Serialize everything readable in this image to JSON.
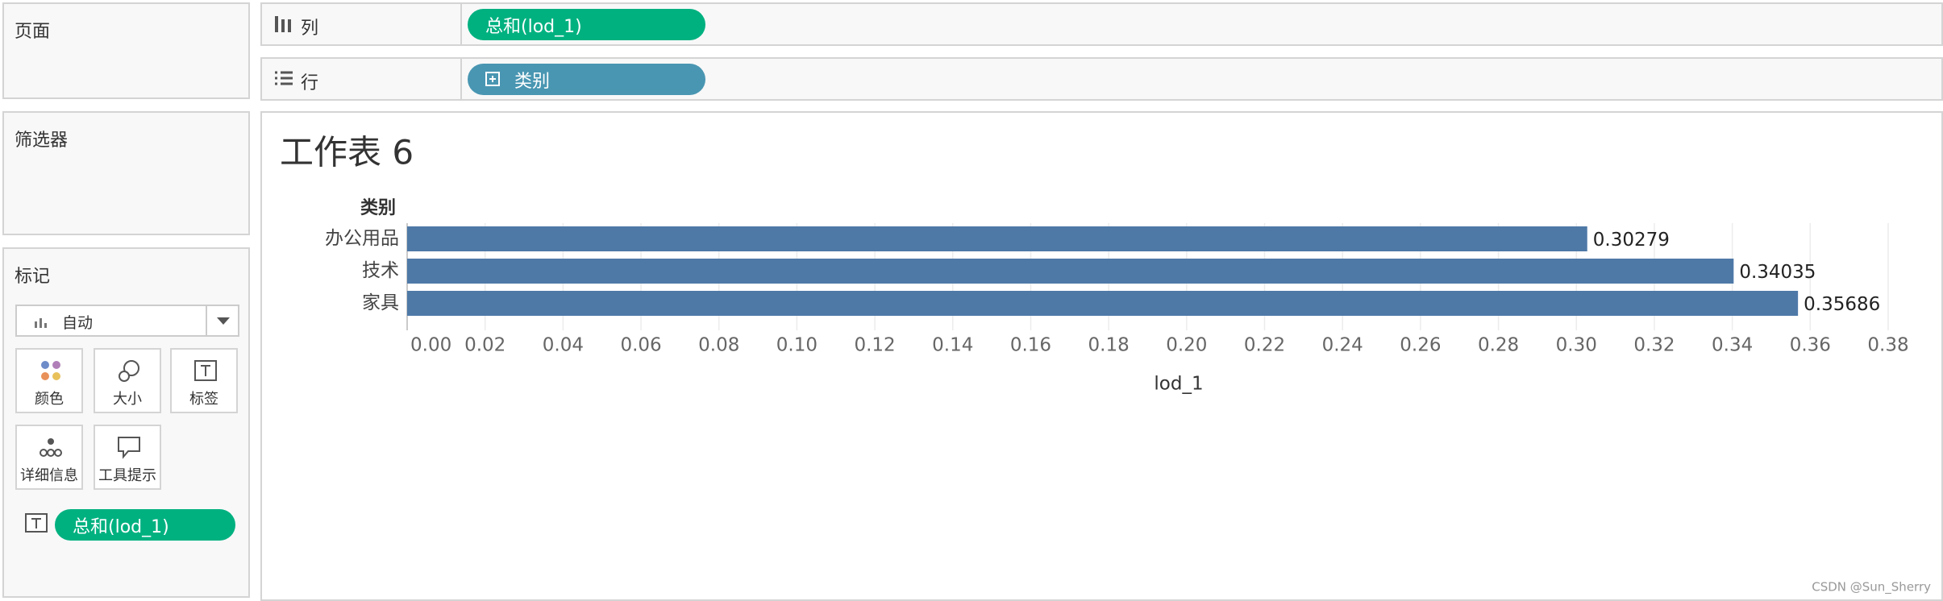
{
  "shelves": {
    "pages": "页面",
    "filters": "筛选器",
    "columns": {
      "label": "列",
      "pill": "总和(lod_1)"
    },
    "rows": {
      "label": "行",
      "pill": "类别"
    }
  },
  "marks": {
    "title": "标记",
    "mark_type": "自动",
    "buttons": [
      "颜色",
      "大小",
      "标签",
      "详细信息",
      "工具提示"
    ],
    "pill": "总和(lod_1)"
  },
  "chart_data": {
    "type": "bar",
    "orientation": "horizontal",
    "title": "工作表 6",
    "category_header": "类别",
    "categories": [
      "办公用品",
      "技术",
      "家具"
    ],
    "values": [
      0.30279,
      0.34035,
      0.35686
    ],
    "color": "#4e79a7",
    "x_label": "lod_1",
    "xlim": [
      0,
      0.38
    ],
    "xticks": [
      {
        "value": 0,
        "label": "0.00"
      },
      {
        "value": 0.02,
        "label": "0.02"
      },
      {
        "value": 0.04,
        "label": "0.04"
      },
      {
        "value": 0.06,
        "label": "0.06"
      },
      {
        "value": 0.08,
        "label": "0.08"
      },
      {
        "value": 0.1,
        "label": "0.10"
      },
      {
        "value": 0.12,
        "label": "0.12"
      },
      {
        "value": 0.14,
        "label": "0.14"
      },
      {
        "value": 0.16,
        "label": "0.16"
      },
      {
        "value": 0.18,
        "label": "0.18"
      },
      {
        "value": 0.2,
        "label": "0.20"
      },
      {
        "value": 0.22,
        "label": "0.22"
      },
      {
        "value": 0.24,
        "label": "0.24"
      },
      {
        "value": 0.26,
        "label": "0.26"
      },
      {
        "value": 0.28,
        "label": "0.28"
      },
      {
        "value": 0.3,
        "label": "0.30"
      },
      {
        "value": 0.32,
        "label": "0.32"
      },
      {
        "value": 0.34,
        "label": "0.34"
      },
      {
        "value": 0.36,
        "label": "0.36"
      },
      {
        "value": 0.38,
        "label": "0.38"
      }
    ],
    "grid": true
  },
  "watermark": "CSDN @Sun_Sherry"
}
